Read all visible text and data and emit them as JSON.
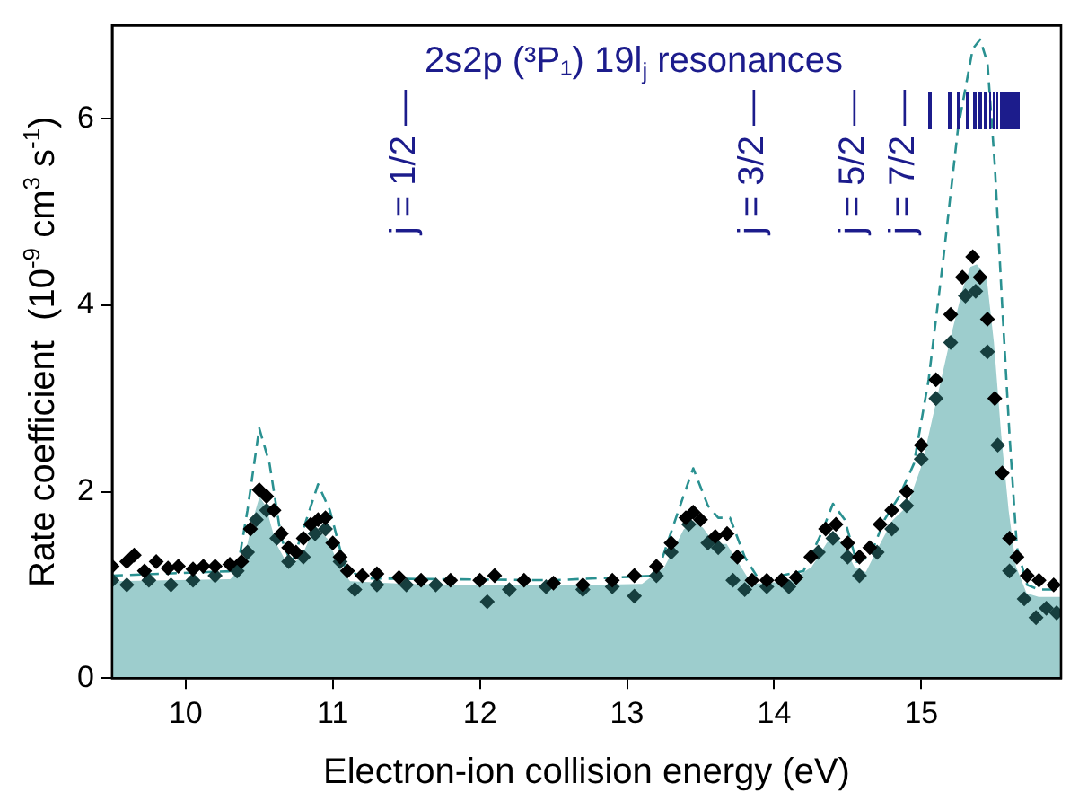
{
  "chart_data": {
    "type": "scatter",
    "xlabel": "Electron-ion collision energy (eV)",
    "ylabel": "Rate coefficient  (10$^{-9}$ cm$^{3}$ s$^{-1}$)",
    "xlim": [
      9.5,
      15.95
    ],
    "xticks": [
      10,
      11,
      12,
      13,
      14,
      15
    ],
    "ylim": [
      0,
      7
    ],
    "yticks": [
      0,
      2,
      4,
      6
    ],
    "grid": false,
    "legend": false,
    "marker": "diamond",
    "annotations": [
      "2s2p (³P₁) 19l$_{j}$ resonances",
      "j = 1/2 —",
      "j = 3/2 —",
      "j = 5/2 —",
      "j = 7/2 —"
    ],
    "series": [
      {
        "type": "area",
        "color": "#9dcdcd",
        "marker": "none",
        "x": [
          9.5,
          10.3,
          10.38,
          10.45,
          10.5,
          10.55,
          10.62,
          10.7,
          10.78,
          10.85,
          10.9,
          10.97,
          11.05,
          11.12,
          11.5,
          12.5,
          13.1,
          13.25,
          13.38,
          13.45,
          13.52,
          13.6,
          13.68,
          13.76,
          13.85,
          14.1,
          14.25,
          14.35,
          14.4,
          14.47,
          14.55,
          14.62,
          14.7,
          14.8,
          14.9,
          15.0,
          15.1,
          15.2,
          15.28,
          15.33,
          15.38,
          15.45,
          15.5,
          15.55,
          15.6,
          15.65,
          15.72,
          15.8,
          15.95
        ],
        "values": [
          1.05,
          1.07,
          1.2,
          1.7,
          1.97,
          1.85,
          1.45,
          1.22,
          1.3,
          1.55,
          1.6,
          1.5,
          1.2,
          1.05,
          1.02,
          1.0,
          1.02,
          1.2,
          1.6,
          1.7,
          1.62,
          1.45,
          1.45,
          1.25,
          1.02,
          1.05,
          1.2,
          1.45,
          1.55,
          1.45,
          1.2,
          1.15,
          1.4,
          1.7,
          1.85,
          2.3,
          3.0,
          3.7,
          4.2,
          4.42,
          4.45,
          4.3,
          3.6,
          2.6,
          1.8,
          1.2,
          0.92,
          0.88,
          0.88
        ]
      },
      {
        "type": "line",
        "color": "#2a9191",
        "marker": "none",
        "line_style": "dashed",
        "x": [
          9.5,
          10.35,
          10.42,
          10.5,
          10.57,
          10.65,
          10.72,
          10.8,
          10.9,
          10.98,
          11.08,
          11.2,
          12.5,
          13.2,
          13.35,
          13.45,
          13.55,
          13.62,
          13.7,
          13.8,
          13.9,
          14.2,
          14.32,
          14.4,
          14.48,
          14.56,
          14.65,
          14.75,
          14.85,
          14.95,
          15.05,
          15.15,
          15.25,
          15.35,
          15.4,
          15.45,
          15.5,
          15.55,
          15.6,
          15.65,
          15.72,
          15.8,
          15.95
        ],
        "values": [
          1.1,
          1.15,
          1.8,
          2.68,
          2.3,
          1.5,
          1.22,
          1.6,
          2.08,
          1.8,
          1.2,
          1.07,
          1.05,
          1.1,
          1.8,
          2.25,
          1.85,
          1.72,
          1.72,
          1.3,
          1.05,
          1.15,
          1.55,
          1.87,
          1.7,
          1.25,
          1.3,
          1.7,
          1.95,
          2.3,
          3.2,
          4.5,
          5.9,
          6.75,
          6.85,
          6.6,
          5.5,
          4.0,
          2.6,
          1.4,
          1.0,
          0.95,
          0.95
        ]
      },
      {
        "color": "#173f3f",
        "x": [
          9.5,
          9.6,
          9.75,
          9.9,
          10.05,
          10.2,
          10.35,
          10.42,
          10.48,
          10.55,
          10.62,
          10.7,
          10.8,
          10.88,
          10.95,
          11.05,
          11.15,
          11.3,
          11.5,
          11.7,
          12.05,
          12.2,
          12.45,
          12.7,
          12.9,
          13.05,
          13.2,
          13.3,
          13.42,
          13.55,
          13.62,
          13.72,
          13.8,
          13.95,
          14.1,
          14.3,
          14.4,
          14.5,
          14.58,
          14.7,
          14.8,
          14.9,
          15.0,
          15.1,
          15.2,
          15.3,
          15.37,
          15.45,
          15.52,
          15.6,
          15.7,
          15.78,
          15.85,
          15.92
        ],
        "values": [
          1.05,
          1.0,
          1.05,
          1.0,
          1.05,
          1.1,
          1.15,
          1.35,
          1.7,
          1.8,
          1.5,
          1.25,
          1.3,
          1.55,
          1.6,
          1.25,
          0.95,
          1.0,
          1.0,
          1.0,
          0.82,
          0.95,
          0.98,
          0.95,
          0.98,
          0.88,
          1.1,
          1.35,
          1.65,
          1.45,
          1.4,
          1.05,
          0.95,
          0.98,
          0.98,
          1.35,
          1.5,
          1.3,
          1.1,
          1.35,
          1.6,
          1.85,
          2.35,
          3.0,
          3.6,
          4.1,
          4.15,
          3.5,
          2.5,
          1.15,
          0.85,
          0.65,
          0.75,
          0.7
        ]
      },
      {
        "color": "#000000",
        "x": [
          9.5,
          9.6,
          9.65,
          9.72,
          9.8,
          9.88,
          9.95,
          10.05,
          10.12,
          10.2,
          10.3,
          10.38,
          10.44,
          10.5,
          10.55,
          10.6,
          10.65,
          10.7,
          10.75,
          10.8,
          10.85,
          10.9,
          10.95,
          11.0,
          11.05,
          11.1,
          11.2,
          11.3,
          11.45,
          11.6,
          11.8,
          12.0,
          12.1,
          12.3,
          12.5,
          12.7,
          12.9,
          13.05,
          13.2,
          13.3,
          13.4,
          13.45,
          13.5,
          13.6,
          13.68,
          13.75,
          13.85,
          13.95,
          14.05,
          14.15,
          14.25,
          14.35,
          14.42,
          14.5,
          14.58,
          14.65,
          14.72,
          14.8,
          14.9,
          15.0,
          15.1,
          15.2,
          15.28,
          15.35,
          15.4,
          15.45,
          15.5,
          15.55,
          15.6,
          15.65,
          15.72,
          15.8,
          15.9
        ],
        "values": [
          1.2,
          1.25,
          1.32,
          1.15,
          1.25,
          1.18,
          1.2,
          1.17,
          1.2,
          1.2,
          1.22,
          1.25,
          1.6,
          2.02,
          1.95,
          1.8,
          1.55,
          1.4,
          1.35,
          1.5,
          1.65,
          1.7,
          1.72,
          1.45,
          1.3,
          1.15,
          1.1,
          1.12,
          1.08,
          1.05,
          1.05,
          1.05,
          1.1,
          1.05,
          1.02,
          1.0,
          1.05,
          1.1,
          1.2,
          1.45,
          1.72,
          1.78,
          1.7,
          1.52,
          1.55,
          1.3,
          1.05,
          1.05,
          1.05,
          1.08,
          1.3,
          1.6,
          1.65,
          1.45,
          1.3,
          1.4,
          1.65,
          1.8,
          2.0,
          2.5,
          3.2,
          3.9,
          4.3,
          4.52,
          4.3,
          3.85,
          3.0,
          2.2,
          1.5,
          1.3,
          1.1,
          1.05,
          1.0
        ]
      }
    ]
  }
}
